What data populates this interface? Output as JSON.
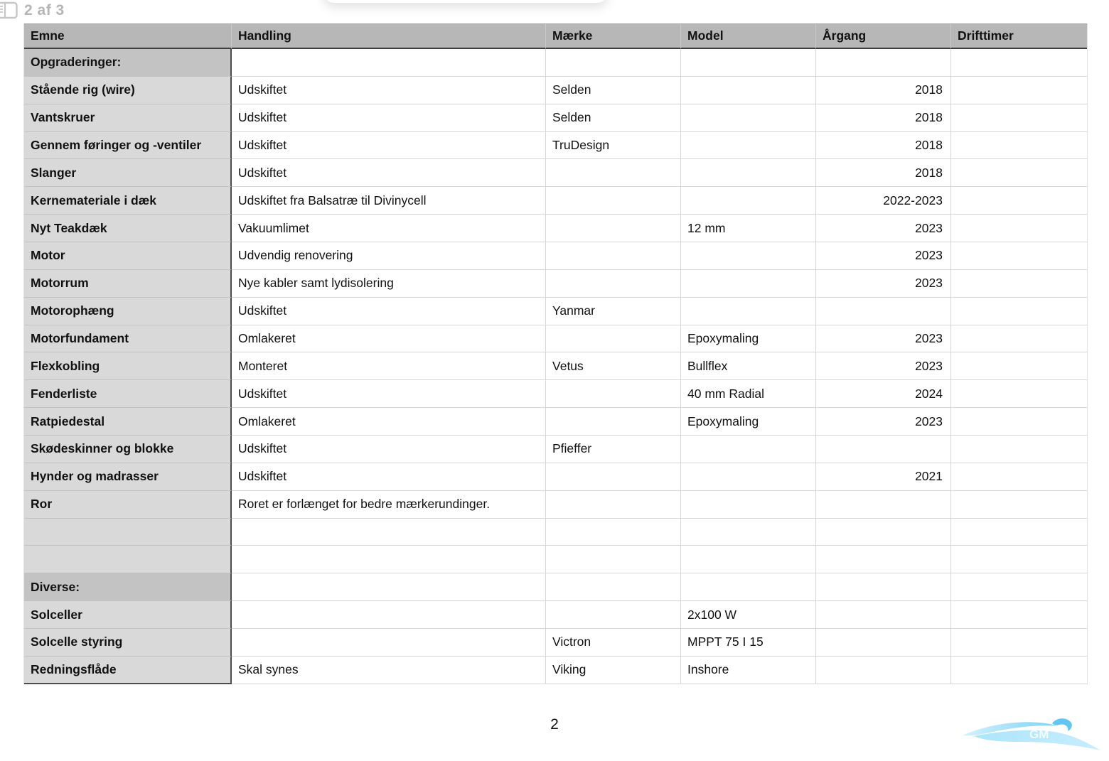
{
  "viewer": {
    "page_indicator": "2 af 3",
    "sidebar_icon": "sidebar-pages-icon"
  },
  "table": {
    "headers": [
      "Emne",
      "Handling",
      "Mærke",
      "Model",
      "Årgang",
      "Drifttimer"
    ],
    "rows": [
      {
        "type": "section",
        "cells": [
          "Opgraderinger:",
          "",
          "",
          "",
          "",
          ""
        ]
      },
      {
        "type": "item",
        "cells": [
          "Stående rig (wire)",
          "Udskiftet",
          "Selden",
          "",
          "2018",
          ""
        ]
      },
      {
        "type": "item",
        "cells": [
          "Vantskruer",
          "Udskiftet",
          "Selden",
          "",
          "2018",
          ""
        ]
      },
      {
        "type": "item",
        "cells": [
          "Gennem føringer og -ventiler",
          "Udskiftet",
          "TruDesign",
          "",
          "2018",
          ""
        ]
      },
      {
        "type": "item",
        "cells": [
          "Slanger",
          "Udskiftet",
          "",
          "",
          "2018",
          ""
        ]
      },
      {
        "type": "item",
        "cells": [
          "Kernemateriale i dæk",
          "Udskiftet fra Balsatræ til Divinycell",
          "",
          "",
          "2022-2023",
          ""
        ]
      },
      {
        "type": "item",
        "cells": [
          "Nyt Teakdæk",
          "Vakuumlimet",
          "",
          "12 mm",
          "2023",
          ""
        ]
      },
      {
        "type": "item",
        "cells": [
          "Motor",
          "Udvendig renovering",
          "",
          "",
          "2023",
          ""
        ]
      },
      {
        "type": "item",
        "cells": [
          "Motorrum",
          "Nye kabler samt lydisolering",
          "",
          "",
          "2023",
          ""
        ]
      },
      {
        "type": "item",
        "cells": [
          "Motorophæng",
          "Udskiftet",
          "Yanmar",
          "",
          "",
          ""
        ]
      },
      {
        "type": "item",
        "cells": [
          "Motorfundament",
          "Omlakeret",
          "",
          "Epoxymaling",
          "2023",
          ""
        ]
      },
      {
        "type": "item",
        "cells": [
          "Flexkobling",
          "Monteret",
          "Vetus",
          "Bullflex",
          "2023",
          ""
        ]
      },
      {
        "type": "item",
        "cells": [
          "Fenderliste",
          "Udskiftet",
          "",
          "40 mm Radial",
          "2024",
          ""
        ]
      },
      {
        "type": "item",
        "cells": [
          "Ratpiedestal",
          "Omlakeret",
          "",
          "Epoxymaling",
          "2023",
          ""
        ]
      },
      {
        "type": "item",
        "cells": [
          "Skødeskinner og blokke",
          "Udskiftet",
          "Pfieffer",
          "",
          "",
          ""
        ]
      },
      {
        "type": "item",
        "cells": [
          "Hynder og madrasser",
          "Udskiftet",
          "",
          "",
          "2021",
          ""
        ]
      },
      {
        "type": "item",
        "cells": [
          "Ror",
          "Roret er forlænget for bedre mærkerundinger.",
          "",
          "",
          "",
          ""
        ]
      },
      {
        "type": "item",
        "cells": [
          "",
          "",
          "",
          "",
          "",
          ""
        ]
      },
      {
        "type": "item",
        "cells": [
          "",
          "",
          "",
          "",
          "",
          ""
        ]
      },
      {
        "type": "section",
        "cells": [
          "Diverse:",
          "",
          "",
          "",
          "",
          ""
        ]
      },
      {
        "type": "item",
        "cells": [
          "Solceller",
          "",
          "",
          "2x100 W",
          "",
          ""
        ]
      },
      {
        "type": "item",
        "cells": [
          "Solcelle styring",
          "",
          "Victron",
          "MPPT 75 I 15",
          "",
          ""
        ]
      },
      {
        "type": "item",
        "cells": [
          "Redningsflåde",
          "Skal synes",
          "Viking",
          "Inshore",
          "",
          ""
        ]
      }
    ]
  },
  "footer": {
    "page_number": "2",
    "logo": {
      "name": "boat-swoosh-logo",
      "text": "GM"
    }
  },
  "colors": {
    "header_bg": "#b7b7b7",
    "section_row_bg": "#c3c3c3",
    "emne_column_bg": "#d9d9d9",
    "grid_line": "#d7d7d7",
    "dark_line": "#4d4d4d",
    "indicator_gray": "#b5b5b5",
    "logo_blue": "#5ec9f4",
    "logo_blue_light": "#b9e9fc"
  }
}
